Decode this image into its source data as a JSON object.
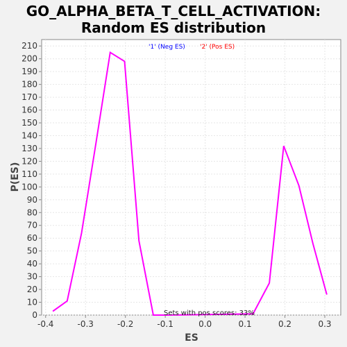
{
  "chart_data": {
    "type": "line",
    "title_line1": "GO_ALPHA_BETA_T_CELL_ACTIVATION:",
    "title_line2": "Random ES distribution",
    "xlabel": "ES",
    "ylabel": "P(ES)",
    "xlim": [
      -0.41,
      0.34
    ],
    "ylim": [
      0,
      215
    ],
    "x_ticks": [
      -0.4,
      -0.3,
      -0.2,
      -0.1,
      0.0,
      0.1,
      0.2,
      0.3
    ],
    "x_tick_labels": [
      "-0.4",
      "-0.3",
      "-0.2",
      "-0.1",
      "0.0",
      "0.1",
      "0.2",
      "0.3"
    ],
    "y_ticks": [
      0,
      10,
      20,
      30,
      40,
      50,
      60,
      70,
      80,
      90,
      100,
      110,
      120,
      130,
      140,
      150,
      160,
      170,
      180,
      190,
      200,
      210
    ],
    "y_tick_labels": [
      "0",
      "10",
      "20",
      "30",
      "40",
      "50",
      "60",
      "70",
      "80",
      "90",
      "100",
      "110",
      "120",
      "130",
      "140",
      "150",
      "160",
      "170",
      "180",
      "190",
      "200",
      "210"
    ],
    "grid": true,
    "legend_position": "top-center",
    "legend": [
      {
        "label": "'1' (Neg ES)",
        "color": "#0000ff"
      },
      {
        "label": "'2' (Pos ES)",
        "color": "#ff0000"
      }
    ],
    "series": [
      {
        "color": "#ff00ff",
        "x": [
          -0.382,
          -0.346,
          -0.31,
          -0.274,
          -0.238,
          -0.202,
          -0.166,
          -0.13,
          -0.094,
          0.12,
          0.161,
          0.197,
          0.235,
          0.27,
          0.305
        ],
        "y": [
          3,
          11,
          64,
          134,
          205,
          198,
          58,
          0,
          0,
          1,
          25,
          132,
          101,
          56,
          16
        ]
      }
    ],
    "annotation": "Sets with pos scores: 33%"
  }
}
